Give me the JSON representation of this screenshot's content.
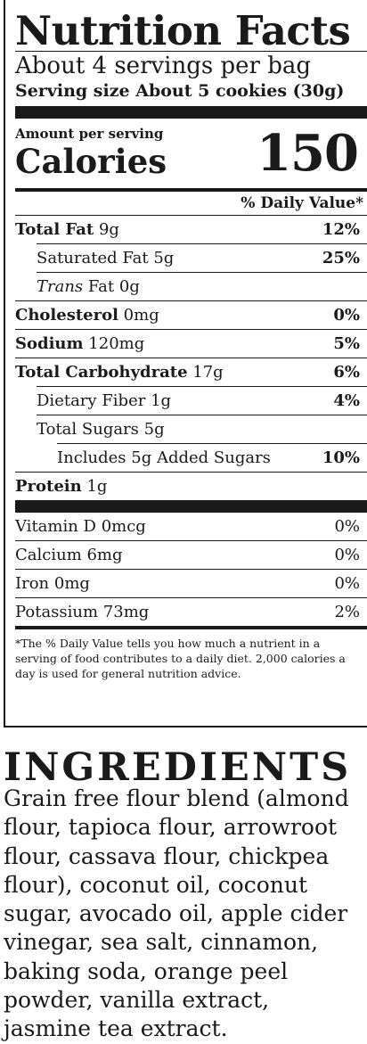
{
  "label": {
    "title": "Nutrition Facts",
    "servings_per_container": "About 4 servings per bag",
    "serving_size": "Serving size About 5 cookies (30g)",
    "amount_per_serving": "Amount per serving",
    "calories_label": "Calories",
    "calories_value": "150",
    "daily_value_header": "% Daily Value*",
    "nutrients": [
      {
        "name": "Total Fat",
        "amount": "9g",
        "dv": "12%"
      },
      {
        "name": "Saturated Fat",
        "amount": "5g",
        "dv": "25%"
      },
      {
        "name": "Trans",
        "amount": "Fat 0g",
        "dv": ""
      },
      {
        "name": "Cholesterol",
        "amount": "0mg",
        "dv": "0%"
      },
      {
        "name": "Sodium",
        "amount": "120mg",
        "dv": "5%"
      },
      {
        "name": "Total Carbohydrate",
        "amount": "17g",
        "dv": "6%"
      },
      {
        "name": "Dietary Fiber",
        "amount": "1g",
        "dv": "4%"
      },
      {
        "name": "Total Sugars",
        "amount": "5g",
        "dv": ""
      },
      {
        "name": "Includes 5g Added Sugars",
        "amount": "",
        "dv": "10%"
      },
      {
        "name": "Protein",
        "amount": "1g",
        "dv": ""
      }
    ],
    "vitamins": [
      {
        "text": "Vitamin D 0mcg",
        "dv": "0%"
      },
      {
        "text": "Calcium 6mg",
        "dv": "0%"
      },
      {
        "text": "Iron 0mg",
        "dv": "0%"
      },
      {
        "text": "Potassium 73mg",
        "dv": "2%"
      }
    ],
    "footnote": "*The % Daily Value tells you how much a nutrient in a serving of food contributes to a daily diet. 2,000 calories a day is used for general nutrition advice."
  },
  "ingredients": {
    "title": "INGREDIENTS",
    "text": "Grain free flour blend (almond\nflour, tapioca flour, arrowroot\nflour, cassava flour, chickpea\nflour), coconut oil, coconut\nsugar, avocado oil, apple cider\nvinegar, sea salt, cinnamon,\nbaking soda, orange peel\npowder, vanilla extract,\njasmine tea extract."
  }
}
